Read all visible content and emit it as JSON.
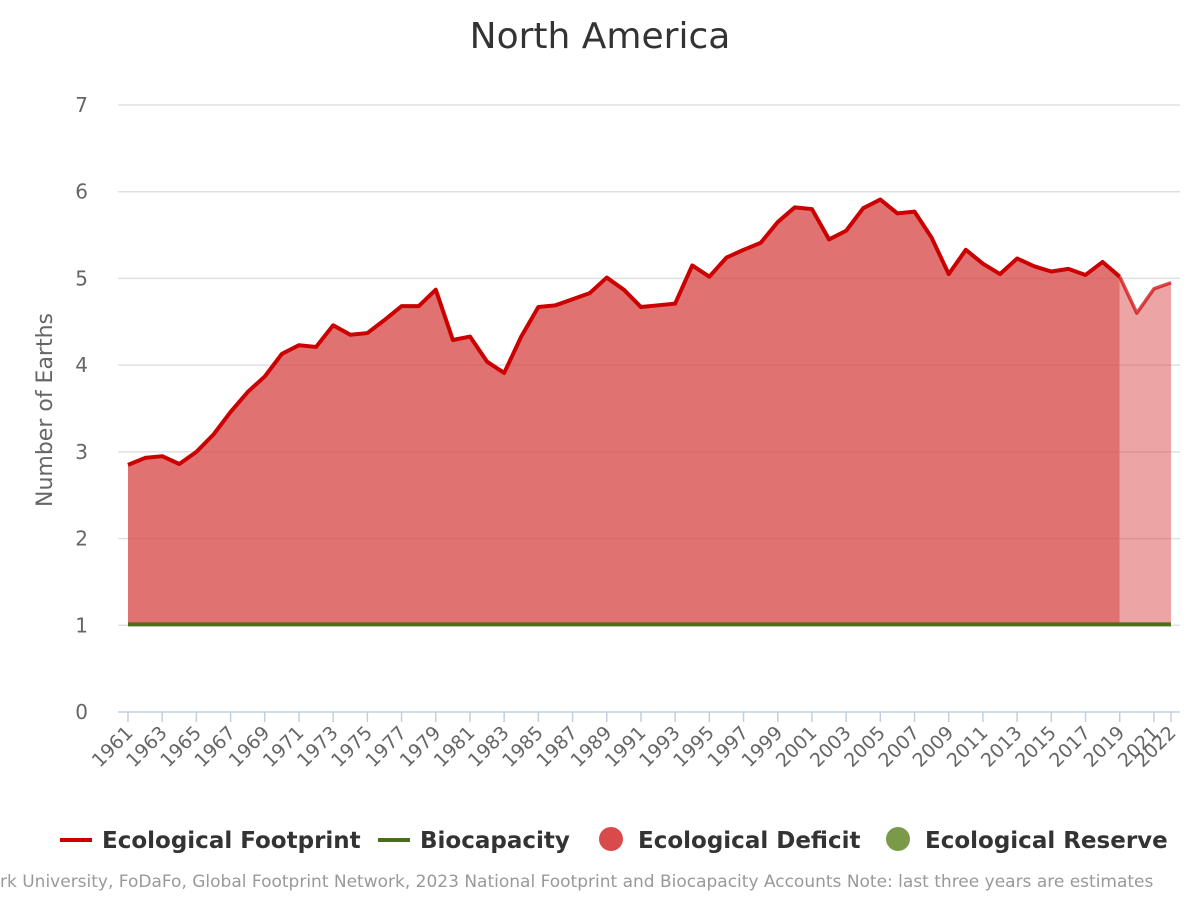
{
  "colors": {
    "footprint": "#cc0000",
    "biocapacity": "#4a6e1a",
    "deficit": "#d94a4a",
    "reserve": "#7a9a4a"
  },
  "legend": [
    {
      "label": "Ecological Footprint",
      "kind": "line",
      "color": "#cc0000"
    },
    {
      "label": "Biocapacity",
      "kind": "line",
      "color": "#4a6e1a"
    },
    {
      "label": "Ecological Deficit",
      "kind": "dot",
      "color": "#d94a4a"
    },
    {
      "label": "Ecological Reserve",
      "kind": "dot",
      "color": "#7a9a4a"
    }
  ],
  "footer": {
    "text": "rk University, FoDaFo, Global Footprint Network, 2023 National Footprint and Biocapacity Accounts Note: last three years are estimates"
  },
  "chart_data": {
    "type": "area",
    "title": "North America",
    "ylabel": "Number of Earths",
    "xlabel": "",
    "ylim": [
      0,
      7
    ],
    "yticks": [
      0,
      1,
      2,
      3,
      4,
      5,
      6,
      7
    ],
    "grid": true,
    "legend_position": "bottom",
    "estimate_years_from": 2019,
    "x": [
      1961,
      1962,
      1963,
      1964,
      1965,
      1966,
      1967,
      1968,
      1969,
      1970,
      1971,
      1972,
      1973,
      1974,
      1975,
      1976,
      1977,
      1978,
      1979,
      1980,
      1981,
      1982,
      1983,
      1984,
      1985,
      1986,
      1987,
      1988,
      1989,
      1990,
      1991,
      1992,
      1993,
      1994,
      1995,
      1996,
      1997,
      1998,
      1999,
      2000,
      2001,
      2002,
      2003,
      2004,
      2005,
      2006,
      2007,
      2008,
      2009,
      2010,
      2011,
      2012,
      2013,
      2014,
      2015,
      2016,
      2017,
      2018,
      2019,
      2020,
      2021,
      2022
    ],
    "x_tick_labels": [
      "1961",
      "1963",
      "1965",
      "1967",
      "1969",
      "1971",
      "1973",
      "1975",
      "1977",
      "1979",
      "1981",
      "1983",
      "1985",
      "1987",
      "1989",
      "1991",
      "1993",
      "1995",
      "1997",
      "1999",
      "2001",
      "2003",
      "2005",
      "2007",
      "2009",
      "2011",
      "2013",
      "2015",
      "2017",
      "2019",
      "2021",
      "2022"
    ],
    "series": [
      {
        "name": "Ecological Footprint",
        "values": [
          2.85,
          2.93,
          2.95,
          2.86,
          3.0,
          3.2,
          3.46,
          3.69,
          3.87,
          4.13,
          4.23,
          4.21,
          4.46,
          4.35,
          4.37,
          4.52,
          4.68,
          4.68,
          4.87,
          4.29,
          4.33,
          4.04,
          3.91,
          4.33,
          4.67,
          4.69,
          4.76,
          4.83,
          5.01,
          4.87,
          4.67,
          4.69,
          4.71,
          5.15,
          5.02,
          5.24,
          5.33,
          5.41,
          5.65,
          5.82,
          5.8,
          5.45,
          5.55,
          5.81,
          5.91,
          5.75,
          5.77,
          5.47,
          5.05,
          5.33,
          5.17,
          5.05,
          5.23,
          5.14,
          5.08,
          5.11,
          5.04,
          5.19,
          5.02,
          4.6,
          4.88,
          4.95
        ]
      },
      {
        "name": "Biocapacity",
        "values": [
          1.01,
          1.01,
          1.01,
          1.01,
          1.01,
          1.01,
          1.01,
          1.01,
          1.01,
          1.01,
          1.01,
          1.01,
          1.01,
          1.01,
          1.01,
          1.01,
          1.01,
          1.01,
          1.01,
          1.01,
          1.01,
          1.01,
          1.01,
          1.01,
          1.01,
          1.01,
          1.01,
          1.01,
          1.01,
          1.01,
          1.01,
          1.01,
          1.01,
          1.01,
          1.01,
          1.01,
          1.01,
          1.01,
          1.01,
          1.01,
          1.01,
          1.01,
          1.01,
          1.01,
          1.01,
          1.01,
          1.01,
          1.01,
          1.01,
          1.01,
          1.01,
          1.01,
          1.01,
          1.01,
          1.01,
          1.01,
          1.01,
          1.01,
          1.01,
          1.01,
          1.01,
          1.01
        ]
      }
    ]
  }
}
